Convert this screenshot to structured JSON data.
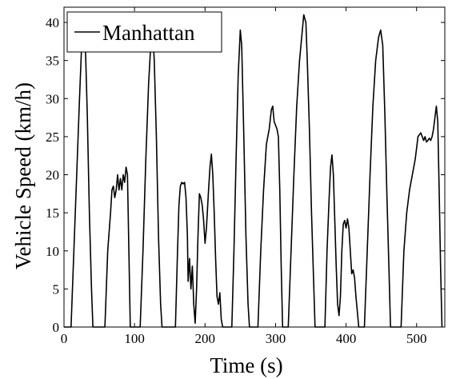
{
  "chart_data": {
    "type": "line",
    "title": "",
    "xlabel": "Time (s)",
    "ylabel": "Vehicle Speed (km/h)",
    "xlim": [
      0,
      540
    ],
    "ylim": [
      0,
      42
    ],
    "x_ticks": [
      "0",
      "100",
      "200",
      "300",
      "400",
      "500"
    ],
    "y_ticks": [
      "0",
      "5",
      "10",
      "15",
      "20",
      "25",
      "30",
      "35",
      "40"
    ],
    "grid": false,
    "legend_position": "top-left",
    "colors": {
      "line": "#000000",
      "background": "#ffffff"
    },
    "series": [
      {
        "name": "Manhattan",
        "points": [
          [
            0,
            0
          ],
          [
            10,
            0
          ],
          [
            14,
            10
          ],
          [
            18,
            20
          ],
          [
            22,
            30
          ],
          [
            25,
            37
          ],
          [
            27,
            40
          ],
          [
            30,
            38
          ],
          [
            33,
            28
          ],
          [
            36,
            15
          ],
          [
            39,
            5
          ],
          [
            41,
            0
          ],
          [
            58,
            0
          ],
          [
            62,
            10
          ],
          [
            66,
            15
          ],
          [
            68,
            18
          ],
          [
            70,
            18.5
          ],
          [
            72,
            17
          ],
          [
            74,
            18
          ],
          [
            76,
            20
          ],
          [
            78,
            18
          ],
          [
            80,
            19.5
          ],
          [
            82,
            18
          ],
          [
            84,
            20
          ],
          [
            86,
            19
          ],
          [
            88,
            21
          ],
          [
            90,
            20
          ],
          [
            92,
            10
          ],
          [
            94,
            0
          ],
          [
            108,
            0
          ],
          [
            112,
            10
          ],
          [
            116,
            22
          ],
          [
            120,
            32
          ],
          [
            123,
            37
          ],
          [
            125,
            40
          ],
          [
            128,
            35
          ],
          [
            131,
            25
          ],
          [
            134,
            12
          ],
          [
            137,
            3
          ],
          [
            139,
            0
          ],
          [
            158,
            0
          ],
          [
            161,
            10
          ],
          [
            163,
            16
          ],
          [
            165,
            18.5
          ],
          [
            167,
            19
          ],
          [
            169,
            18.8
          ],
          [
            171,
            19
          ],
          [
            173,
            17
          ],
          [
            175,
            12
          ],
          [
            176,
            6
          ],
          [
            178,
            9
          ],
          [
            180,
            5
          ],
          [
            182,
            8
          ],
          [
            184,
            3
          ],
          [
            186,
            0.5
          ],
          [
            188,
            5
          ],
          [
            190,
            12
          ],
          [
            192,
            17.5
          ],
          [
            194,
            17
          ],
          [
            196,
            16
          ],
          [
            198,
            14
          ],
          [
            200,
            11
          ],
          [
            202,
            13
          ],
          [
            205,
            18
          ],
          [
            207,
            21
          ],
          [
            209,
            22.7
          ],
          [
            211,
            20
          ],
          [
            213,
            15
          ],
          [
            215,
            9
          ],
          [
            217,
            4
          ],
          [
            219,
            3
          ],
          [
            221,
            4.5
          ],
          [
            223,
            1
          ],
          [
            225,
            0
          ],
          [
            238,
            0
          ],
          [
            241,
            10
          ],
          [
            244,
            22
          ],
          [
            247,
            33
          ],
          [
            250,
            39
          ],
          [
            252,
            37
          ],
          [
            255,
            25
          ],
          [
            258,
            12
          ],
          [
            261,
            3
          ],
          [
            263,
            0
          ],
          [
            275,
            0
          ],
          [
            279,
            10
          ],
          [
            283,
            18
          ],
          [
            287,
            24
          ],
          [
            291,
            26
          ],
          [
            294,
            28.5
          ],
          [
            296,
            29
          ],
          [
            298,
            27
          ],
          [
            300,
            26.5
          ],
          [
            302,
            26
          ],
          [
            304,
            25
          ],
          [
            306,
            18
          ],
          [
            308,
            8
          ],
          [
            310,
            0
          ],
          [
            318,
            0
          ],
          [
            322,
            10
          ],
          [
            326,
            20
          ],
          [
            330,
            29
          ],
          [
            334,
            35
          ],
          [
            338,
            39
          ],
          [
            340,
            41
          ],
          [
            343,
            40
          ],
          [
            345,
            35
          ],
          [
            348,
            26
          ],
          [
            351,
            15
          ],
          [
            354,
            6
          ],
          [
            356,
            0
          ],
          [
            370,
            0
          ],
          [
            373,
            10
          ],
          [
            376,
            17
          ],
          [
            378,
            21
          ],
          [
            380,
            22.6
          ],
          [
            382,
            20
          ],
          [
            384,
            14
          ],
          [
            386,
            8
          ],
          [
            388,
            3
          ],
          [
            390,
            1.5
          ],
          [
            392,
            4
          ],
          [
            394,
            10
          ],
          [
            396,
            13.5
          ],
          [
            398,
            14
          ],
          [
            400,
            13
          ],
          [
            402,
            14.2
          ],
          [
            404,
            13
          ],
          [
            406,
            10
          ],
          [
            408,
            7
          ],
          [
            410,
            7.5
          ],
          [
            412,
            6.5
          ],
          [
            414,
            4
          ],
          [
            416,
            2
          ],
          [
            418,
            0
          ],
          [
            426,
            0
          ],
          [
            430,
            10
          ],
          [
            434,
            20
          ],
          [
            438,
            29
          ],
          [
            442,
            35
          ],
          [
            446,
            38
          ],
          [
            449,
            39
          ],
          [
            452,
            37
          ],
          [
            455,
            28
          ],
          [
            458,
            17
          ],
          [
            461,
            7
          ],
          [
            463,
            0
          ],
          [
            478,
            0
          ],
          [
            482,
            10
          ],
          [
            486,
            15
          ],
          [
            490,
            18
          ],
          [
            494,
            20
          ],
          [
            498,
            22
          ],
          [
            502,
            25
          ],
          [
            506,
            25.5
          ],
          [
            508,
            25
          ],
          [
            510,
            24.5
          ],
          [
            512,
            25
          ],
          [
            514,
            24.3
          ],
          [
            516,
            24.5
          ],
          [
            518,
            24.8
          ],
          [
            520,
            24.5
          ],
          [
            522,
            25
          ],
          [
            524,
            26
          ],
          [
            526,
            27.5
          ],
          [
            528,
            29
          ],
          [
            530,
            27
          ],
          [
            532,
            18
          ],
          [
            534,
            8
          ],
          [
            536,
            0
          ]
        ]
      }
    ]
  }
}
